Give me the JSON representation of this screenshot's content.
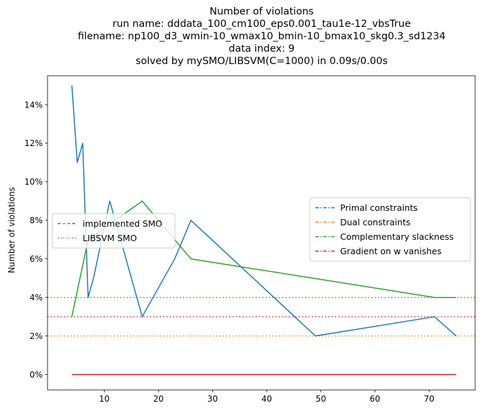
{
  "chart_data": {
    "type": "line",
    "title_lines": [
      "Number of violations",
      "run name: dddata_100_cm100_eps0.001_tau1e-12_vbsTrue",
      "filename: np100_d3_wmin-10_wmax10_bmin-10_bmax10_skg0.3_sd1234",
      "data index: 9",
      "solved by mySMO/LIBSVM(C=1000) in 0.09s/0.00s"
    ],
    "xlabel": "",
    "ylabel": "Number of violations",
    "xlim": [
      -0.5,
      78.5
    ],
    "ylim": [
      -0.8,
      15.5
    ],
    "xticks": [
      10,
      20,
      30,
      40,
      50,
      60,
      70
    ],
    "yticks": [
      0,
      2,
      4,
      6,
      8,
      10,
      12,
      14
    ],
    "ytick_suffix": "%",
    "grid": false,
    "series": [
      {
        "name": "Primal constraints",
        "color": "#1f77b4",
        "x": [
          4,
          5,
          6,
          7,
          8,
          11,
          17,
          23,
          26,
          49,
          71,
          75
        ],
        "y": [
          15,
          11,
          12,
          4,
          5,
          9,
          3,
          6,
          8,
          2,
          3,
          2
        ]
      },
      {
        "name": "Dual constraints",
        "color": "#ff7f0e",
        "x": [
          4,
          75
        ],
        "y": [
          0,
          0
        ]
      },
      {
        "name": "Complementary slackness",
        "color": "#2ca02c",
        "x": [
          4,
          7,
          17,
          26,
          71,
          75
        ],
        "y": [
          3,
          7,
          9,
          6,
          4,
          4
        ]
      },
      {
        "name": "Gradient on w vanishes",
        "color": "#d62728",
        "x": [
          4,
          75
        ],
        "y": [
          0,
          0
        ]
      }
    ],
    "hlines": [
      {
        "y": 4,
        "color": "#2ca02c"
      },
      {
        "y": 3,
        "color": "#d62728"
      },
      {
        "y": 2,
        "color": "#ff7f0e"
      }
    ],
    "legend_right": {
      "placement": "center-right",
      "entries": [
        {
          "label": "Primal constraints",
          "color": "#1f77b4"
        },
        {
          "label": "Dual constraints",
          "color": "#ff7f0e"
        },
        {
          "label": "Complementary slackness",
          "color": "#2ca02c"
        },
        {
          "label": "Gradient on w vanishes",
          "color": "#d62728"
        }
      ]
    },
    "legend_left": {
      "placement": "center-left",
      "entries": [
        {
          "label": "implemented SMO",
          "colors": [
            "#1f77b4",
            "#ff7f0e",
            "#2ca02c",
            "#d62728"
          ],
          "style": "dashed"
        },
        {
          "label": "LIBSVM SMO",
          "colors": [
            "#1f77b4",
            "#ff7f0e",
            "#2ca02c",
            "#d62728"
          ],
          "style": "dotted"
        }
      ]
    }
  }
}
